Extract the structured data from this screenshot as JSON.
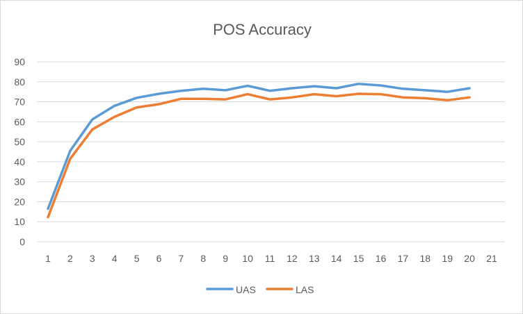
{
  "chart_data": {
    "type": "line",
    "title": "POS Accuracy",
    "xlabel": "",
    "ylabel": "",
    "x": [
      1,
      2,
      3,
      4,
      5,
      6,
      7,
      8,
      9,
      10,
      11,
      12,
      13,
      14,
      15,
      16,
      17,
      18,
      19,
      20
    ],
    "x_ticks": [
      "1",
      "2",
      "3",
      "4",
      "5",
      "6",
      "7",
      "8",
      "9",
      "10",
      "11",
      "12",
      "13",
      "14",
      "15",
      "16",
      "17",
      "18",
      "19",
      "20",
      "21"
    ],
    "xlim": [
      1,
      21
    ],
    "ylim": [
      0,
      90
    ],
    "y_ticks": [
      "0",
      "10",
      "20",
      "30",
      "40",
      "50",
      "60",
      "70",
      "80",
      "90"
    ],
    "grid": "horizontal",
    "legend_position": "bottom",
    "series": [
      {
        "name": "UAS",
        "color": "#5b9bd5",
        "values": [
          16.5,
          45.5,
          61.2,
          68,
          72,
          74,
          75.5,
          76.5,
          75.8,
          78,
          75.5,
          76.8,
          77.8,
          76.8,
          79,
          78.2,
          76.5,
          75.8,
          75,
          76.8
        ]
      },
      {
        "name": "LAS",
        "color": "#ed7d31",
        "values": [
          12.3,
          41.5,
          56.2,
          62.5,
          67.2,
          68.8,
          71.5,
          71.5,
          71.2,
          73.8,
          71.2,
          72.2,
          73.8,
          72.8,
          74,
          73.8,
          72.2,
          71.8,
          70.8,
          72.2
        ]
      }
    ]
  }
}
